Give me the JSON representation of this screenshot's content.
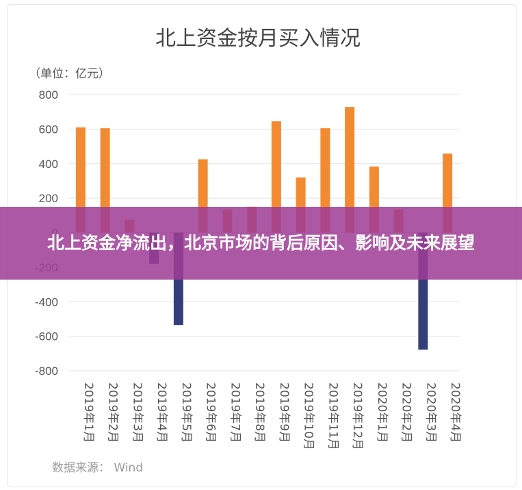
{
  "chart_data": {
    "type": "bar",
    "title": "北上资金按月买入情况",
    "unit_label": "（单位：亿元）",
    "source": "数据来源： Wind",
    "categories": [
      "2019年1月",
      "2019年2月",
      "2019年3月",
      "2019年4月",
      "2019年5月",
      "2019年6月",
      "2019年7月",
      "2019年8月",
      "2019年9月",
      "2019年10月",
      "2019年11月",
      "2019年12月",
      "2020年1月",
      "2020年2月",
      "2020年3月",
      "2020年4月"
    ],
    "values": [
      610,
      605,
      75,
      -180,
      -535,
      425,
      135,
      150,
      645,
      320,
      605,
      728,
      383,
      135,
      -678,
      458
    ],
    "ylim": [
      -800,
      800
    ],
    "yticks": [
      800,
      600,
      400,
      200,
      0,
      -200,
      -400,
      -600,
      -800
    ],
    "grid": true,
    "colors": {
      "positive": "#f28a32",
      "negative": "#343e7a",
      "grid": "#e3e3e3",
      "text": "#555555"
    }
  },
  "banner": {
    "text": "北上资金净流出，北京市场的背后原因、影响及未来展望"
  }
}
